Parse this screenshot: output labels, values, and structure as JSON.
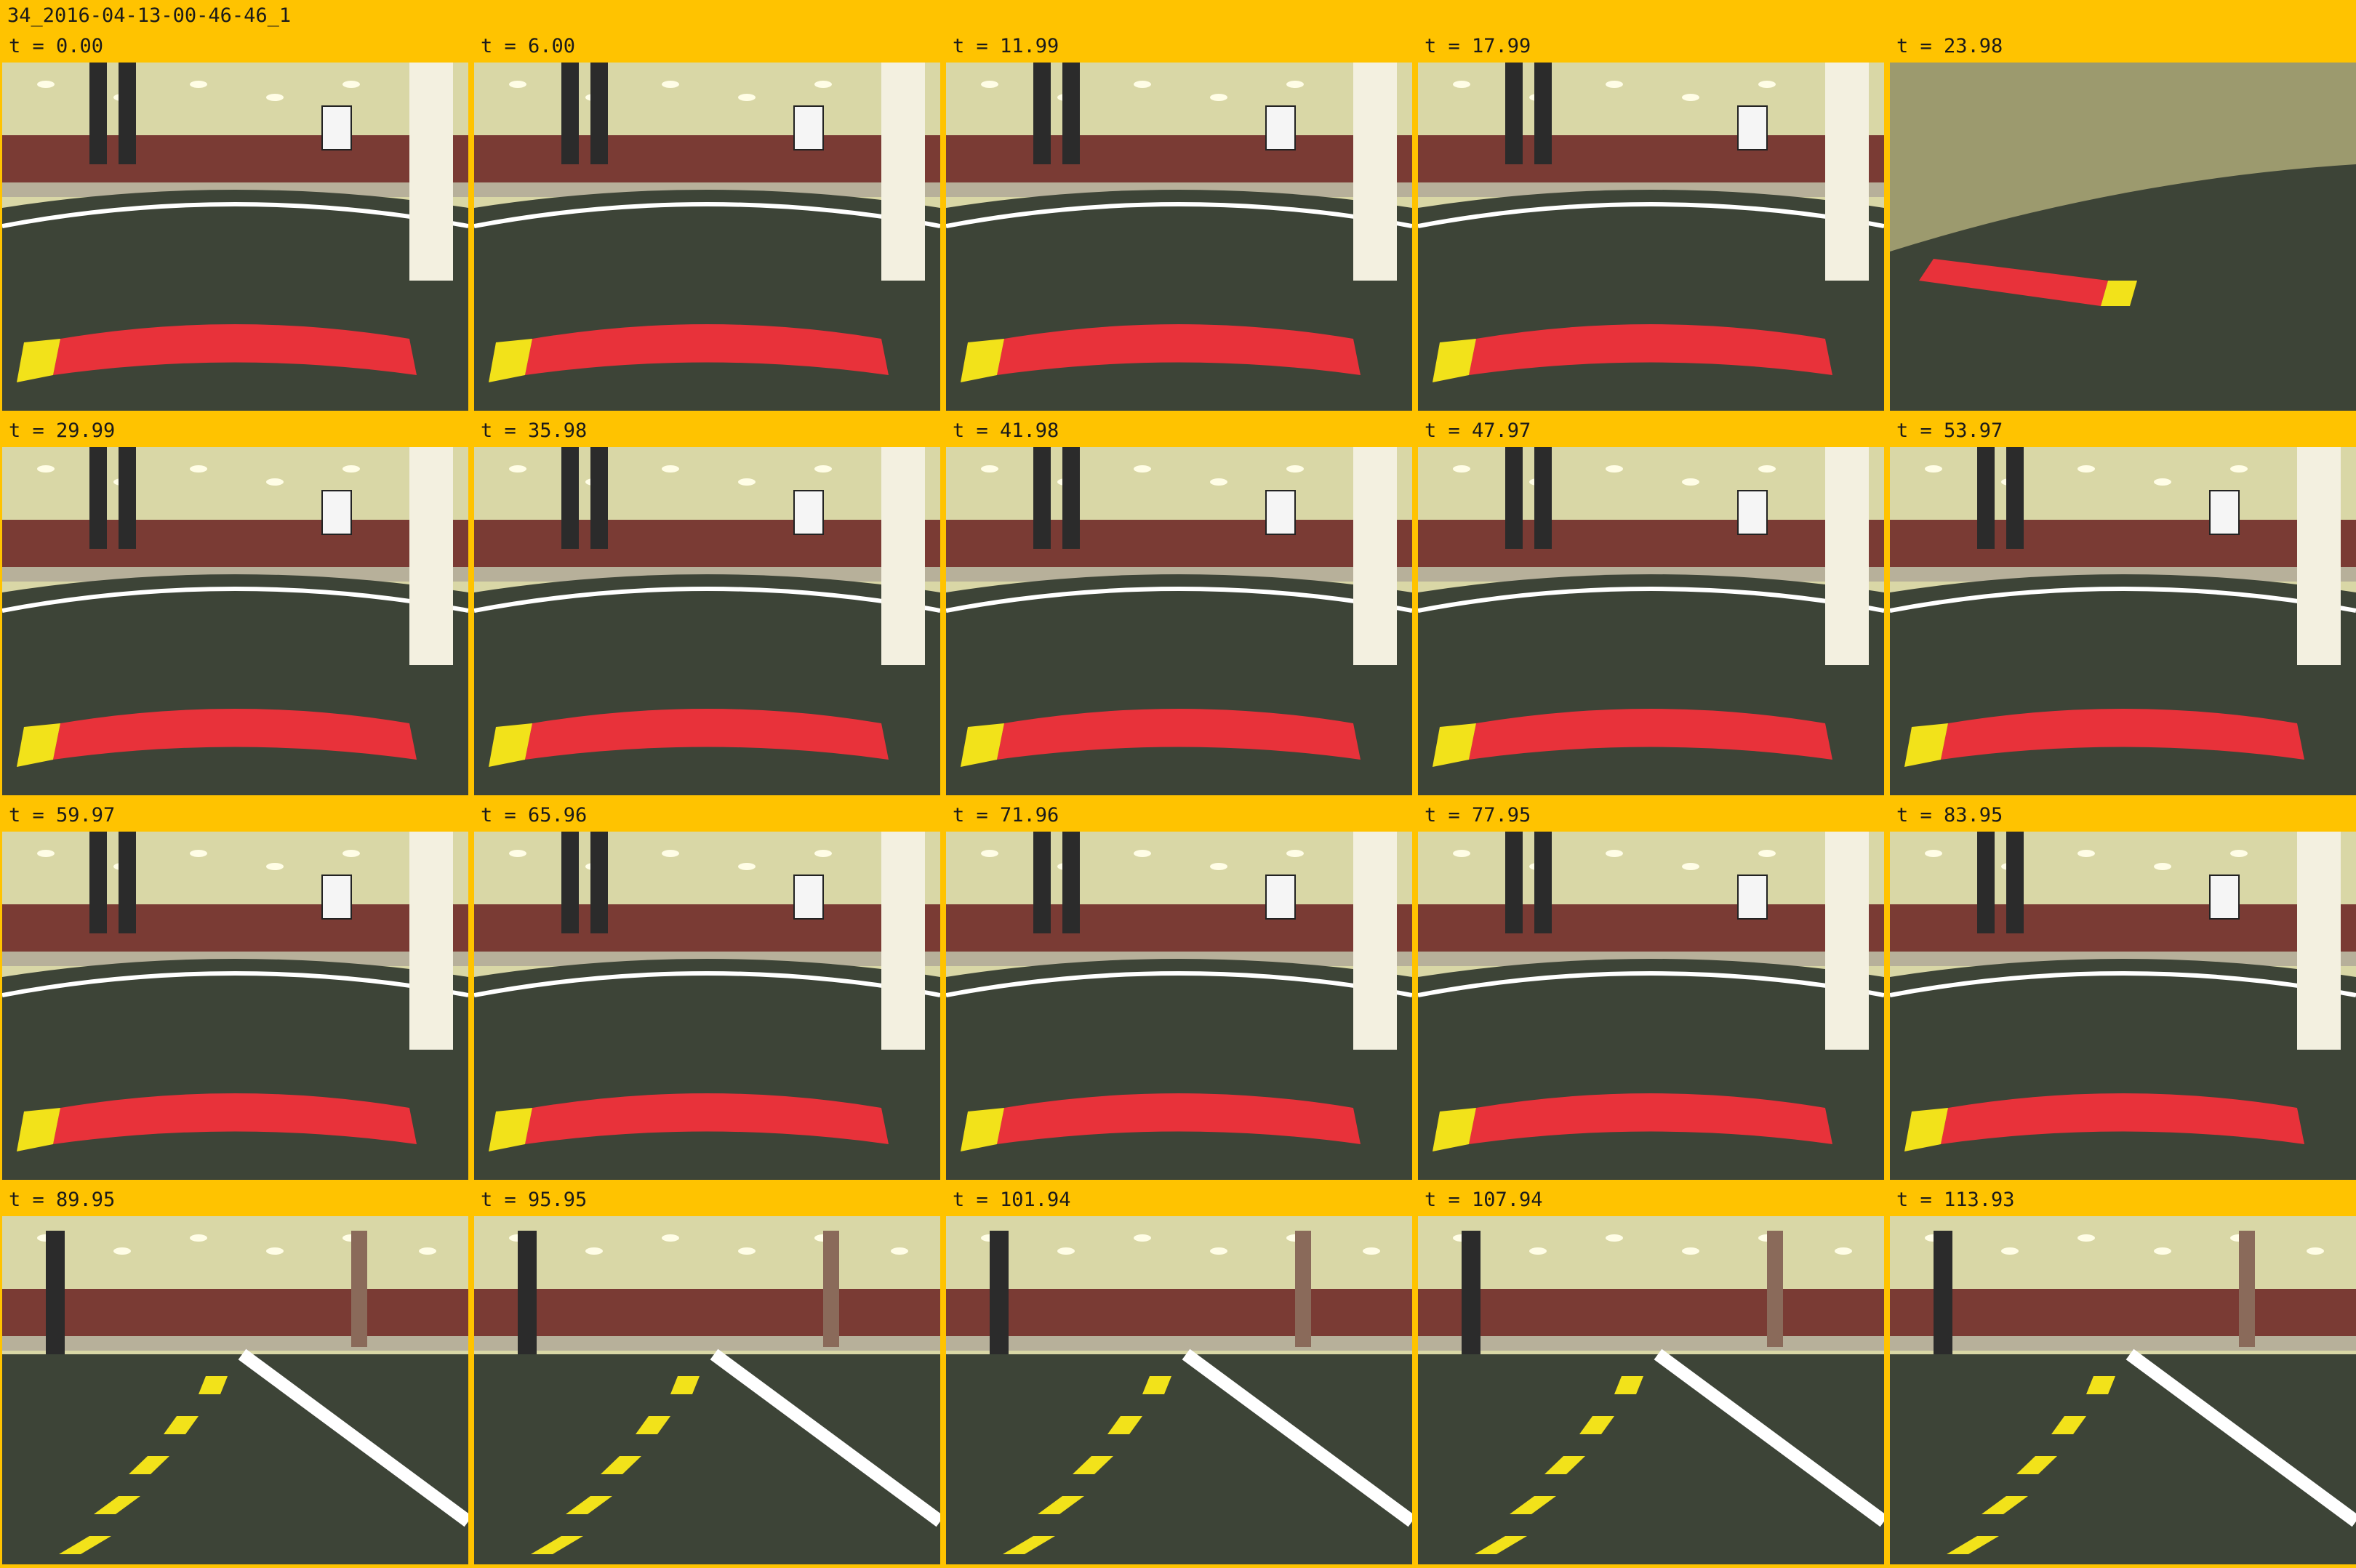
{
  "sheet": {
    "title": "34_2016-04-13-00-46-46_1"
  },
  "frames": [
    {
      "label": "t = 0.00",
      "scene": "stopline"
    },
    {
      "label": "t = 6.00",
      "scene": "stopline"
    },
    {
      "label": "t = 11.99",
      "scene": "stopline"
    },
    {
      "label": "t = 17.99",
      "scene": "stopline"
    },
    {
      "label": "t = 23.98",
      "scene": "blur"
    },
    {
      "label": "t = 29.99",
      "scene": "stopline"
    },
    {
      "label": "t = 35.98",
      "scene": "stopline"
    },
    {
      "label": "t = 41.98",
      "scene": "stopline"
    },
    {
      "label": "t = 47.97",
      "scene": "stopline"
    },
    {
      "label": "t = 53.97",
      "scene": "stopline"
    },
    {
      "label": "t = 59.97",
      "scene": "stopline"
    },
    {
      "label": "t = 65.96",
      "scene": "stopline"
    },
    {
      "label": "t = 71.96",
      "scene": "stopline"
    },
    {
      "label": "t = 77.95",
      "scene": "stopline"
    },
    {
      "label": "t = 83.95",
      "scene": "stopline"
    },
    {
      "label": "t = 89.95",
      "scene": "road"
    },
    {
      "label": "t = 95.95",
      "scene": "road"
    },
    {
      "label": "t = 101.94",
      "scene": "road"
    },
    {
      "label": "t = 107.94",
      "scene": "road"
    },
    {
      "label": "t = 113.93",
      "scene": "road"
    }
  ],
  "colors": {
    "background": "#ffc300",
    "mat": "#3d4437",
    "stopline": "#e8323a",
    "lane_yellow": "#f2e21a",
    "stand": "#7a3b34",
    "ceiling": "#d9d7a6"
  }
}
